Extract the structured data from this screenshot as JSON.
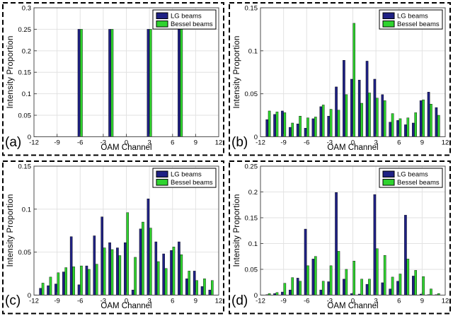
{
  "style": {
    "lg_color": "#1f2184",
    "bessel_color": "#2fd32f",
    "bar_edge_color": "#000000",
    "grid_color": "#e2e2e2",
    "axis_color": "#4d4d4d",
    "frame_color": "#000000",
    "legend_border_color": "#000000",
    "text_color": "#000000",
    "background_color": "#ffffff"
  },
  "legend": {
    "items": [
      "LG beams",
      "Bessel beams"
    ]
  },
  "chart_data": [
    {
      "id": "a",
      "panel_label": "(a)",
      "type": "bar",
      "title": "",
      "xlabel": "OAM Channel",
      "ylabel": "Intensity Proportion",
      "xlim": [
        -12,
        12
      ],
      "ylim": [
        0,
        0.3
      ],
      "xticks": [
        -12,
        -9,
        -6,
        -3,
        0,
        3,
        6,
        9,
        12
      ],
      "yticks": [
        0,
        0.05,
        0.1,
        0.15,
        0.2,
        0.25,
        0.3
      ],
      "grid": true,
      "legend_position": "top-right",
      "x": [
        -6,
        -2,
        3,
        7
      ],
      "series": [
        {
          "name": "LG beams",
          "values": [
            0.25,
            0.25,
            0.25,
            0.25
          ]
        },
        {
          "name": "Bessel beams",
          "values": [
            0.25,
            0.25,
            0.25,
            0.25
          ]
        }
      ]
    },
    {
      "id": "b",
      "panel_label": "(b)",
      "type": "bar",
      "title": "",
      "xlabel": "OAM Channel",
      "ylabel": "Intensity Proportion",
      "xlim": [
        -12,
        12
      ],
      "ylim": [
        0,
        0.15
      ],
      "xticks": [
        -12,
        -9,
        -6,
        -3,
        0,
        3,
        6,
        9,
        12
      ],
      "yticks": [
        0,
        0.05,
        0.1,
        0.15
      ],
      "grid": true,
      "legend_position": "top-right",
      "x": [
        -11,
        -10,
        -9,
        -8,
        -7,
        -6,
        -5,
        -4,
        -3,
        -2,
        -1,
        0,
        1,
        2,
        3,
        4,
        5,
        6,
        7,
        8,
        9,
        10,
        11
      ],
      "series": [
        {
          "name": "LG beams",
          "values": [
            0.02,
            0.026,
            0.03,
            0.011,
            0.015,
            0.01,
            0.021,
            0.035,
            0.024,
            0.058,
            0.089,
            0.067,
            0.066,
            0.088,
            0.067,
            0.049,
            0.017,
            0.019,
            0.014,
            0.016,
            0.042,
            0.052,
            0.034
          ]
        },
        {
          "name": "Bessel beams",
          "values": [
            0.03,
            0.029,
            0.028,
            0.016,
            0.024,
            0.022,
            0.023,
            0.037,
            0.032,
            0.031,
            0.049,
            0.132,
            0.039,
            0.051,
            0.045,
            0.042,
            0.027,
            0.021,
            0.022,
            0.028,
            0.043,
            0.038,
            0.025
          ]
        }
      ]
    },
    {
      "id": "c",
      "panel_label": "(c)",
      "type": "bar",
      "title": "",
      "xlabel": "OAM Channel",
      "ylabel": "Intensity Proportion",
      "xlim": [
        -12,
        12
      ],
      "ylim": [
        0,
        0.15
      ],
      "xticks": [
        -12,
        -9,
        -6,
        -3,
        0,
        3,
        6,
        9,
        12
      ],
      "yticks": [
        0,
        0.05,
        0.1,
        0.15
      ],
      "grid": true,
      "legend_position": "top-right",
      "x": [
        -11,
        -10,
        -9,
        -8,
        -7,
        -6,
        -5,
        -4,
        -3,
        -2,
        -1,
        0,
        1,
        2,
        3,
        4,
        5,
        6,
        7,
        8,
        9,
        10,
        11
      ],
      "series": [
        {
          "name": "LG beams",
          "values": [
            0.008,
            0.011,
            0.013,
            0.027,
            0.068,
            0.012,
            0.034,
            0.069,
            0.091,
            0.061,
            0.055,
            0.061,
            0.006,
            0.077,
            0.112,
            0.062,
            0.048,
            0.052,
            0.062,
            0.019,
            0.028,
            0.01,
            0.006
          ]
        },
        {
          "name": "Bessel beams",
          "values": [
            0.014,
            0.021,
            0.026,
            0.032,
            0.033,
            0.034,
            0.03,
            0.036,
            0.055,
            0.053,
            0.046,
            0.096,
            0.044,
            0.085,
            0.078,
            0.039,
            0.031,
            0.056,
            0.047,
            0.028,
            0.017,
            0.019,
            0.017
          ]
        }
      ]
    },
    {
      "id": "d",
      "panel_label": "(d)",
      "type": "bar",
      "title": "",
      "xlabel": "OAM Channel",
      "ylabel": "Intensity Proportion",
      "xlim": [
        -12,
        12
      ],
      "ylim": [
        0,
        0.25
      ],
      "xticks": [
        -12,
        -9,
        -6,
        -3,
        0,
        3,
        6,
        9,
        12
      ],
      "yticks": [
        0,
        0.05,
        0.1,
        0.15,
        0.2,
        0.25
      ],
      "grid": true,
      "legend_position": "top-right",
      "x": [
        -11,
        -10,
        -9,
        -8,
        -7,
        -6,
        -5,
        -4,
        -3,
        -2,
        -1,
        0,
        1,
        2,
        3,
        4,
        5,
        6,
        7,
        8,
        9,
        10,
        11
      ],
      "series": [
        {
          "name": "LG beams",
          "values": [
            0.001,
            0.003,
            0.006,
            0.01,
            0.033,
            0.128,
            0.07,
            0.01,
            0.026,
            0.199,
            0.031,
            0.003,
            0.002,
            0.021,
            0.195,
            0.024,
            0.012,
            0.027,
            0.155,
            0.037,
            0.002,
            0.001,
            0.001
          ]
        },
        {
          "name": "Bessel beams",
          "values": [
            0.003,
            0.005,
            0.023,
            0.034,
            0.027,
            0.057,
            0.075,
            0.027,
            0.057,
            0.085,
            0.05,
            0.066,
            0.031,
            0.031,
            0.09,
            0.077,
            0.035,
            0.041,
            0.07,
            0.048,
            0.036,
            0.012,
            0.003
          ]
        }
      ]
    }
  ]
}
